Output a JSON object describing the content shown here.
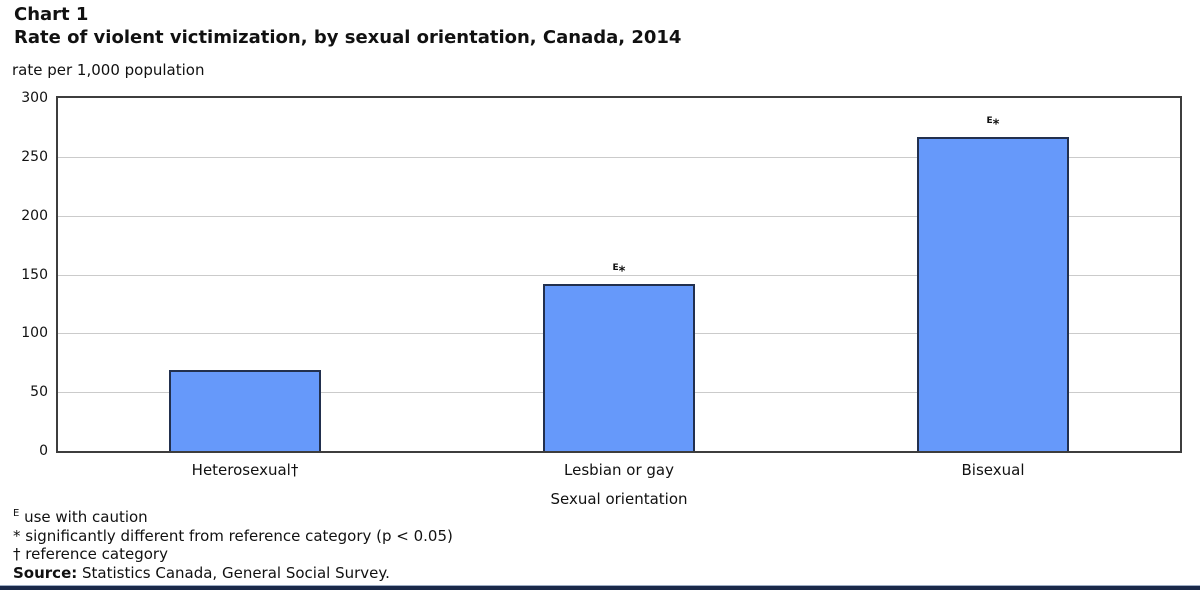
{
  "header": {
    "chart_label": "Chart 1",
    "title": "Rate of violent victimization, by sexual orientation, Canada, 2014",
    "unit_label": "rate per 1,000 population"
  },
  "chart_data": {
    "type": "bar",
    "title": "Rate of violent victimization, by sexual orientation, Canada, 2014",
    "categories": [
      "Heterosexual†",
      "Lesbian or gay",
      "Bisexual"
    ],
    "values": [
      69,
      142,
      267
    ],
    "annotations": [
      null,
      {
        "sup": "E",
        "text": "*"
      },
      {
        "sup": "E",
        "text": "*"
      }
    ],
    "xlabel": "Sexual orientation",
    "ylabel": "rate per 1,000 population",
    "ylim": [
      0,
      300
    ],
    "yticks": [
      0,
      50,
      100,
      150,
      200,
      250,
      300
    ],
    "grid": true,
    "legend": "none"
  },
  "footnotes": {
    "caution_symbol": "E",
    "caution_text": " use with caution",
    "significance_symbol": "*",
    "significance_text": " significantly different from reference category (p < 0.05)",
    "reference_symbol": "†",
    "reference_text": " reference category",
    "source_label": "Source:",
    "source_text": " Statistics Canada, General Social Survey."
  },
  "colors": {
    "bar_fill": "#6699fa",
    "bar_border": "#22304e",
    "grid": "#cbcbcb",
    "frame": "#3d3d3d",
    "text": "#111111",
    "bottom_rule": "#1a2949"
  }
}
